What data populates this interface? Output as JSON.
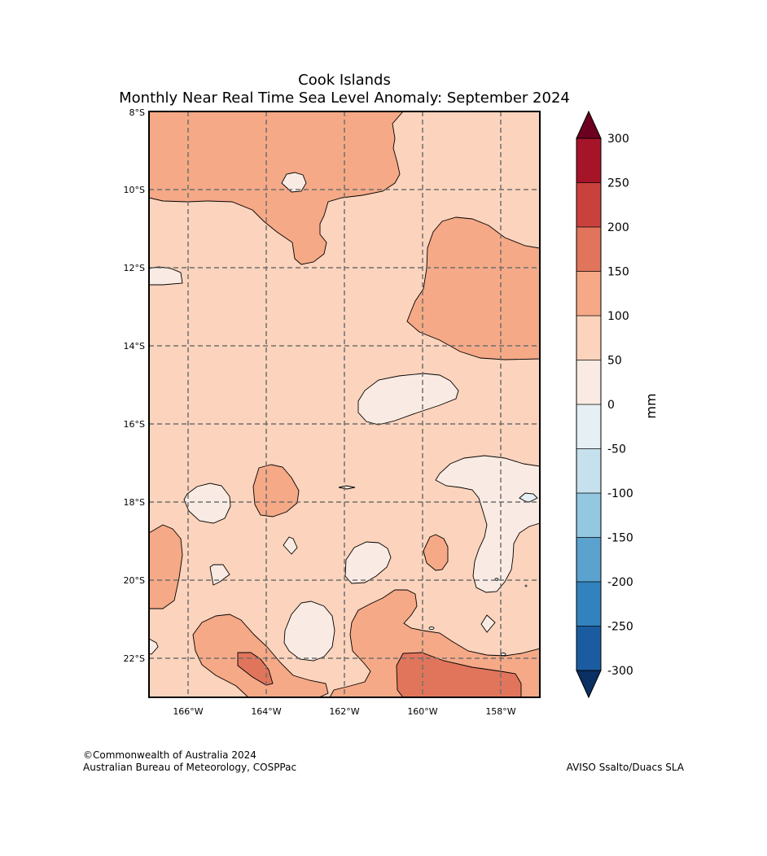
{
  "title": "Cook Islands",
  "subtitle": "Monthly Near Real Time Sea Level Anomaly: September 2024",
  "map": {
    "lon_range": [
      -167,
      -157
    ],
    "lat_range": [
      -23,
      -8
    ],
    "lat_ticks": [
      "8°S",
      "10°S",
      "12°S",
      "14°S",
      "16°S",
      "18°S",
      "20°S",
      "22°S"
    ],
    "lon_ticks": [
      "166°W",
      "164°W",
      "162°W",
      "160°W",
      "158°W"
    ],
    "gridlines": "dashed",
    "background_band": "50 to 100 mm"
  },
  "colorbar": {
    "unit_label": "mm",
    "tick_labels": [
      "300",
      "250",
      "200",
      "150",
      "100",
      "50",
      "0",
      "-50",
      "-100",
      "-150",
      "-200",
      "-250",
      "-300"
    ],
    "levels_top_to_bottom": [
      {
        "range": "250 to 300",
        "color": "#a51429"
      },
      {
        "range": "200 to 250",
        "color": "#c8413d"
      },
      {
        "range": "150 to 200",
        "color": "#e0755c"
      },
      {
        "range": "100 to 150",
        "color": "#f5a987"
      },
      {
        "range": "50 to 100",
        "color": "#fcd3bc"
      },
      {
        "range": "0 to 50",
        "color": "#f9ebe3"
      },
      {
        "range": "-50 to 0",
        "color": "#e6eff4"
      },
      {
        "range": "-100 to -50",
        "color": "#c6e0ee"
      },
      {
        "range": "-150 to -100",
        "color": "#94c7e0"
      },
      {
        "range": "-200 to -150",
        "color": "#5ba2cf"
      },
      {
        "range": "-250 to -200",
        "color": "#3282be"
      },
      {
        "range": "-300 to -250",
        "color": "#1b5ca1"
      }
    ],
    "extend_max_color": "#6b0020",
    "extend_min_color": "#0a3064"
  },
  "credits": {
    "line1": "©Commonwealth of Australia 2024",
    "line2": "Australian Bureau of Meteorology, COSPPac",
    "source": "AVISO Ssalto/Duacs SLA"
  }
}
